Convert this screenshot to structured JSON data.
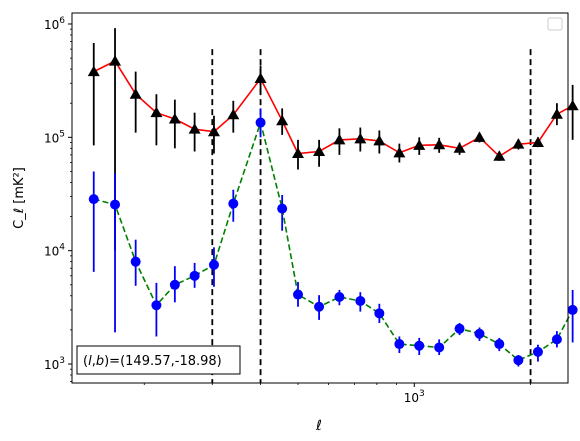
{
  "chart_data": {
    "type": "line",
    "title": "",
    "xlabel": "ℓ",
    "ylabel": "C_ℓ  [mK²]",
    "xscale": "log",
    "yscale": "log",
    "xlim": [
      130,
      2500
    ],
    "ylim": [
      680,
      1250000
    ],
    "x_major_ticks": [
      {
        "value": 1000,
        "base": "10",
        "exp": "3"
      }
    ],
    "y_major_ticks": [
      {
        "value": 1000,
        "base": "10",
        "exp": "3"
      },
      {
        "value": 10000,
        "base": "10",
        "exp": "4"
      },
      {
        "value": 100000,
        "base": "10",
        "exp": "5"
      },
      {
        "value": 1000000,
        "base": "10",
        "exp": "6"
      }
    ],
    "vlines": [
      300,
      400,
      2000
    ],
    "annotation": {
      "prefix": "(",
      "l": "l",
      "comma": ",",
      "b": "b",
      "eq": ")=",
      "value": "(149.57,-18.98)"
    },
    "legend": {
      "placement": "top-right",
      "entries": []
    },
    "series": [
      {
        "marker": "triangle",
        "line_color": "#ff0000",
        "marker_color": "#000000",
        "line_style": "solid",
        "x": [
          148,
          168,
          190,
          215,
          240,
          270,
          303,
          340,
          400,
          455,
          500,
          567,
          640,
          725,
          812,
          915,
          1030,
          1160,
          1310,
          1475,
          1660,
          1860,
          2090,
          2340,
          2570
        ],
        "y": [
          380000,
          470000,
          240000,
          165000,
          145000,
          118000,
          112000,
          158000,
          330000,
          140000,
          72000,
          75000,
          95000,
          97000,
          93000,
          73000,
          85000,
          86000,
          80000,
          100000,
          68000,
          87000,
          90000,
          160000,
          190000
        ],
        "y_low": [
          85000,
          10000,
          110000,
          85000,
          80000,
          75000,
          72000,
          110000,
          240000,
          105000,
          52000,
          55000,
          70000,
          75000,
          72000,
          60000,
          70000,
          73000,
          70000,
          90000,
          62000,
          78000,
          82000,
          128000,
          95000
        ],
        "y_high": [
          680000,
          920000,
          380000,
          240000,
          215000,
          165000,
          155000,
          210000,
          430000,
          180000,
          95000,
          95000,
          120000,
          122000,
          115000,
          88000,
          100000,
          99000,
          90000,
          110000,
          75000,
          96000,
          100000,
          200000,
          290000
        ]
      },
      {
        "marker": "circle",
        "line_color": "#008000",
        "marker_color": "#0000ff",
        "line_style": "dashed",
        "x": [
          148,
          168,
          190,
          215,
          240,
          270,
          303,
          340,
          400,
          455,
          500,
          567,
          640,
          725,
          812,
          915,
          1030,
          1160,
          1310,
          1475,
          1660,
          1860,
          2090,
          2340,
          2570
        ],
        "y": [
          28500,
          25500,
          8000,
          3300,
          5000,
          6000,
          7500,
          26000,
          135000,
          23500,
          4100,
          3200,
          3900,
          3600,
          2800,
          1500,
          1450,
          1400,
          2050,
          1850,
          1500,
          1080,
          1280,
          1650,
          3000
        ],
        "y_low": [
          6500,
          1900,
          4900,
          1750,
          3500,
          4700,
          4800,
          18000,
          100000,
          15000,
          3200,
          2450,
          3300,
          2900,
          2300,
          1250,
          1200,
          1200,
          1800,
          1600,
          1300,
          950,
          1050,
          1400,
          1550
        ],
        "y_high": [
          50000,
          48000,
          12500,
          5200,
          7300,
          7800,
          10700,
          34500,
          180000,
          31000,
          5300,
          4050,
          4500,
          4300,
          3400,
          1750,
          1700,
          1650,
          2300,
          2100,
          1700,
          1200,
          1480,
          1950,
          4500
        ]
      }
    ]
  }
}
